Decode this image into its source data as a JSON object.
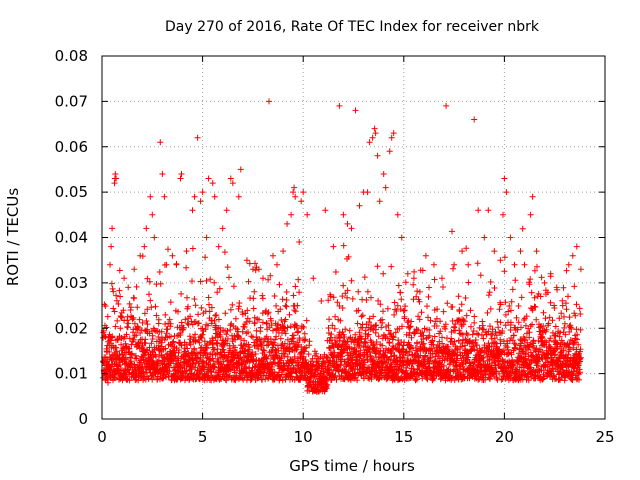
{
  "chart_data": {
    "type": "scatter",
    "title": "Day 270 of 2016, Rate Of TEC Index for receiver nbrk",
    "xlabel": "GPS time / hours",
    "ylabel": "ROTI / TECUs",
    "xlim": [
      0,
      25
    ],
    "ylim": [
      0,
      0.08
    ],
    "x_ticks": [
      0,
      5,
      10,
      15,
      20,
      25
    ],
    "x_tick_labels": [
      "0",
      "5",
      "10",
      "15",
      "20",
      "25"
    ],
    "y_ticks": [
      0,
      0.01,
      0.02,
      0.03,
      0.04,
      0.05,
      0.06,
      0.07,
      0.08
    ],
    "y_tick_labels": [
      "0",
      "0.01",
      "0.02",
      "0.03",
      "0.04",
      "0.05",
      "0.06",
      "0.07",
      "0.08"
    ],
    "grid": true,
    "legend": "none",
    "marker": "+",
    "marker_color": "#ff0000",
    "description_of_density": "Dense band of points between about 0.003 and 0.03 TECU across 0 to 23.8 hours, with sparse excursions up to about 0.07 TECU",
    "series": [
      {
        "name": "ROTI",
        "color": "#ff0000",
        "points": [
          [
            0.3,
            0.008
          ],
          [
            0.35,
            0.012
          ],
          [
            0.4,
            0.034
          ],
          [
            0.45,
            0.038
          ],
          [
            0.5,
            0.042
          ],
          [
            0.62,
            0.052
          ],
          [
            0.64,
            0.053
          ],
          [
            0.66,
            0.054
          ],
          [
            0.7,
            0.053
          ],
          [
            0.9,
            0.027
          ],
          [
            1.1,
            0.031
          ],
          [
            1.3,
            0.029
          ],
          [
            1.6,
            0.033
          ],
          [
            1.9,
            0.036
          ],
          [
            2.1,
            0.038
          ],
          [
            2.2,
            0.042
          ],
          [
            2.4,
            0.049
          ],
          [
            2.5,
            0.045
          ],
          [
            2.6,
            0.04
          ],
          [
            2.9,
            0.061
          ],
          [
            3.0,
            0.054
          ],
          [
            3.1,
            0.049
          ],
          [
            3.2,
            0.034
          ],
          [
            3.5,
            0.036
          ],
          [
            3.7,
            0.034
          ],
          [
            3.9,
            0.053
          ],
          [
            3.95,
            0.054
          ],
          [
            4.2,
            0.037
          ],
          [
            4.5,
            0.046
          ],
          [
            4.6,
            0.049
          ],
          [
            4.75,
            0.062
          ],
          [
            4.9,
            0.048
          ],
          [
            5.0,
            0.05
          ],
          [
            5.2,
            0.04
          ],
          [
            5.3,
            0.053
          ],
          [
            5.5,
            0.052
          ],
          [
            5.6,
            0.049
          ],
          [
            5.8,
            0.038
          ],
          [
            6.0,
            0.042
          ],
          [
            6.2,
            0.046
          ],
          [
            6.4,
            0.053
          ],
          [
            6.5,
            0.052
          ],
          [
            6.8,
            0.049
          ],
          [
            6.9,
            0.055
          ],
          [
            7.2,
            0.035
          ],
          [
            7.5,
            0.033
          ],
          [
            7.8,
            0.033
          ],
          [
            8.0,
            0.031
          ],
          [
            8.3,
            0.07
          ],
          [
            8.5,
            0.036
          ],
          [
            8.7,
            0.034
          ],
          [
            9.0,
            0.037
          ],
          [
            9.2,
            0.043
          ],
          [
            9.4,
            0.045
          ],
          [
            9.5,
            0.05
          ],
          [
            9.55,
            0.051
          ],
          [
            9.6,
            0.049
          ],
          [
            9.8,
            0.039
          ],
          [
            9.9,
            0.048
          ],
          [
            10.0,
            0.05
          ],
          [
            10.2,
            0.045
          ],
          [
            10.5,
            0.031
          ],
          [
            10.9,
            0.026
          ],
          [
            11.1,
            0.046
          ],
          [
            11.5,
            0.038
          ],
          [
            11.8,
            0.069
          ],
          [
            12.0,
            0.045
          ],
          [
            12.2,
            0.043
          ],
          [
            12.4,
            0.042
          ],
          [
            12.6,
            0.068
          ],
          [
            12.8,
            0.047
          ],
          [
            13.0,
            0.05
          ],
          [
            13.2,
            0.05
          ],
          [
            13.3,
            0.061
          ],
          [
            13.45,
            0.062
          ],
          [
            13.55,
            0.064
          ],
          [
            13.6,
            0.063
          ],
          [
            13.7,
            0.058
          ],
          [
            13.8,
            0.048
          ],
          [
            14.0,
            0.054
          ],
          [
            14.1,
            0.051
          ],
          [
            14.3,
            0.059
          ],
          [
            14.4,
            0.062
          ],
          [
            14.5,
            0.063
          ],
          [
            14.7,
            0.045
          ],
          [
            14.9,
            0.04
          ],
          [
            15.2,
            0.032
          ],
          [
            15.5,
            0.031
          ],
          [
            15.8,
            0.028
          ],
          [
            16.1,
            0.036
          ],
          [
            16.5,
            0.034
          ],
          [
            16.9,
            0.031
          ],
          [
            17.1,
            0.069
          ],
          [
            17.5,
            0.034
          ],
          [
            17.9,
            0.037
          ],
          [
            18.2,
            0.034
          ],
          [
            18.5,
            0.066
          ],
          [
            18.7,
            0.046
          ],
          [
            19.0,
            0.04
          ],
          [
            19.2,
            0.046
          ],
          [
            19.5,
            0.037
          ],
          [
            19.8,
            0.035
          ],
          [
            20.0,
            0.053
          ],
          [
            20.1,
            0.05
          ],
          [
            20.3,
            0.04
          ],
          [
            20.5,
            0.034
          ],
          [
            20.8,
            0.037
          ],
          [
            21.0,
            0.034
          ],
          [
            21.3,
            0.045
          ],
          [
            21.4,
            0.049
          ],
          [
            21.6,
            0.037
          ],
          [
            21.8,
            0.027
          ],
          [
            22.0,
            0.03
          ],
          [
            22.3,
            0.032
          ],
          [
            22.6,
            0.029
          ],
          [
            22.9,
            0.025
          ],
          [
            23.2,
            0.034
          ],
          [
            23.4,
            0.036
          ],
          [
            23.6,
            0.038
          ],
          [
            23.8,
            0.033
          ]
        ]
      }
    ]
  }
}
